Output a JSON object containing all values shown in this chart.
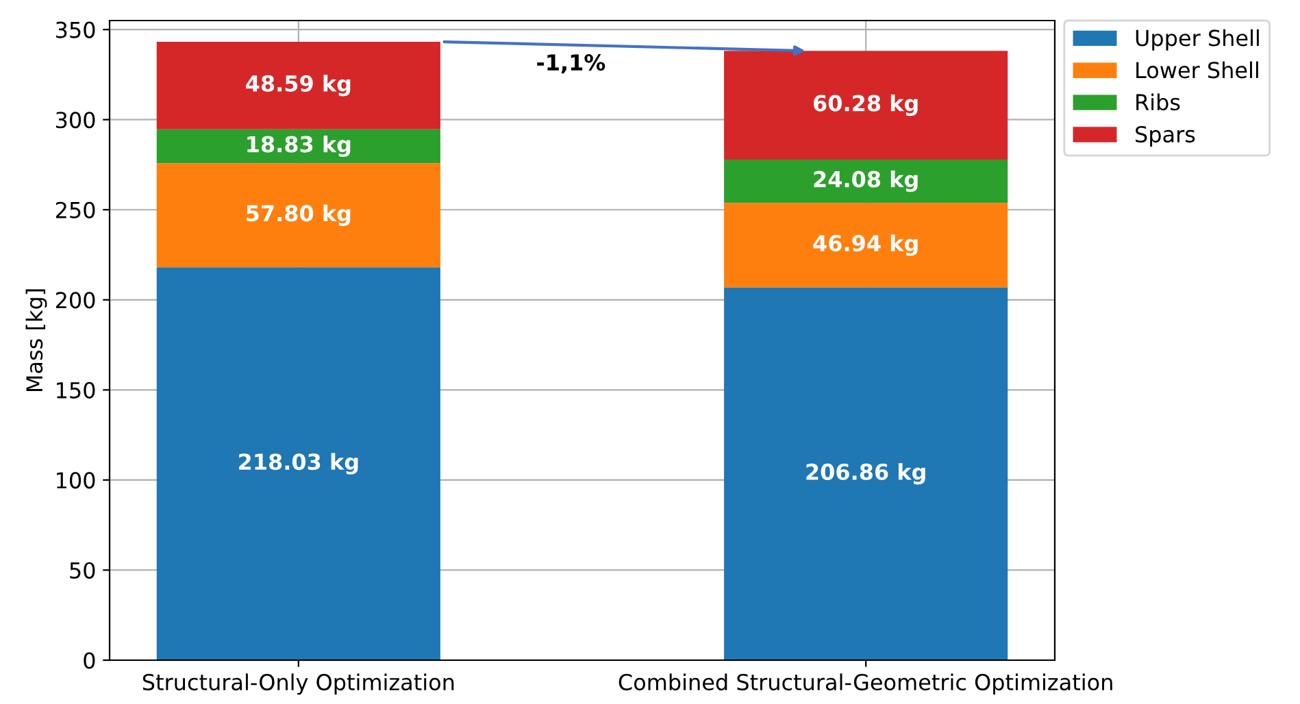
{
  "chart_data": {
    "type": "bar",
    "stacked": true,
    "ylabel": "Mass [kg]",
    "categories": [
      "Structural-Only Optimization",
      "Combined Structural-Geometric Optimization"
    ],
    "series": [
      {
        "name": "Upper Shell",
        "color": "#1f77b4",
        "values": [
          218.03,
          206.86
        ],
        "value_labels": [
          "218.03 kg",
          "206.86 kg"
        ]
      },
      {
        "name": "Lower Shell",
        "color": "#ff7f0e",
        "values": [
          57.8,
          46.94
        ],
        "value_labels": [
          "57.80 kg",
          "46.94 kg"
        ]
      },
      {
        "name": "Ribs",
        "color": "#2ca02c",
        "values": [
          18.83,
          24.08
        ],
        "value_labels": [
          "18.83 kg",
          "24.08 kg"
        ]
      },
      {
        "name": "Spars",
        "color": "#d62728",
        "values": [
          48.59,
          60.28
        ],
        "value_labels": [
          "48.59 kg",
          "60.28 kg"
        ]
      }
    ],
    "ylim": [
      0,
      355
    ],
    "yticks": [
      0,
      50,
      100,
      150,
      200,
      250,
      300,
      350
    ],
    "grid": true,
    "legend": "top right",
    "annotations": [
      "-1,1%"
    ]
  }
}
